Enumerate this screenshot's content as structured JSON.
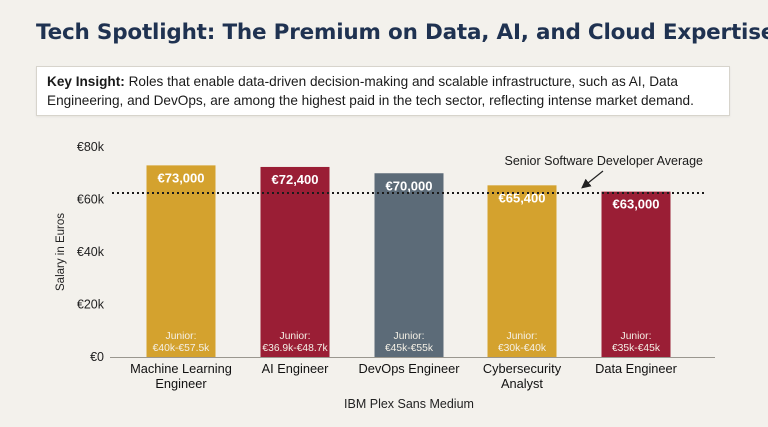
{
  "header": {
    "title": "Tech Spotlight: The Premium on Data, AI, and Cloud Expertise"
  },
  "insight": {
    "label": "Key Insight:",
    "text": " Roles that enable data-driven decision-making and scalable infrastructure, such as AI, Data Engineering, and DevOps, are among the highest paid in the tech sector, reflecting intense market demand."
  },
  "chart_data": {
    "type": "bar",
    "categories": [
      [
        "Machine Learning",
        "Engineer"
      ],
      [
        "AI Engineer"
      ],
      [
        "DevOps Engineer"
      ],
      [
        "Cybersecurity",
        "Analyst"
      ],
      [
        "Data Engineer"
      ]
    ],
    "values": [
      73000,
      72400,
      70000,
      65400,
      63000
    ],
    "value_labels": [
      "€73,000",
      "€72,400",
      "€70,000",
      "€65,400",
      "€63,000"
    ],
    "junior_title": "Junior:",
    "junior_ranges": [
      "€40k-€57.5k",
      "€36.9k-€48.7k",
      "€45k-€55k",
      "€30k-€40k",
      "€35k-€45k"
    ],
    "colors": [
      "#d4a22e",
      "#9a1e35",
      "#5c6b78",
      "#d4a22e",
      "#9a1e35"
    ],
    "ylim": [
      0,
      80000
    ],
    "yticks": [
      0,
      20000,
      40000,
      60000,
      80000
    ],
    "ytick_labels": [
      "€0",
      "€20k",
      "€40k",
      "€60k",
      "€80k"
    ],
    "ylabel": "Salary in Euros",
    "xlabel": "IBM Plex Sans Medium",
    "reference_line": {
      "value": 62500,
      "label": "Senior Software Developer Average"
    }
  }
}
